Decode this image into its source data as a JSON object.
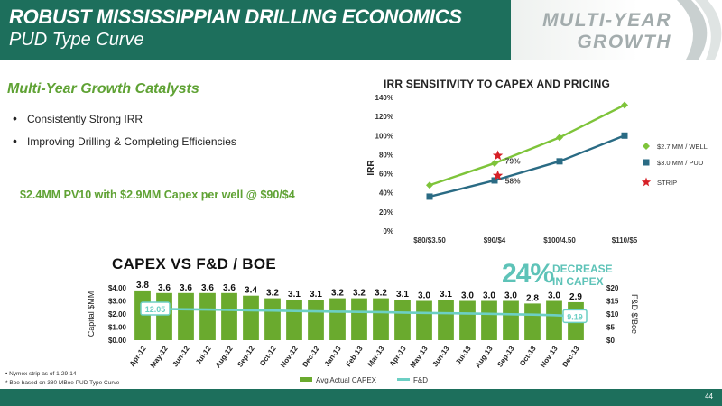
{
  "header": {
    "title": "ROBUST MISSISSIPPIAN DRILLING ECONOMICS",
    "subtitle": "PUD Type Curve",
    "brand_line1": "MULTI-YEAR",
    "brand_line2": "GROWTH"
  },
  "catalysts": {
    "title": "Multi-Year Growth Catalysts",
    "bullets": [
      "Consistently Strong IRR",
      "Improving Drilling & Completing Efficiencies"
    ],
    "pv10": "$2.4MM PV10 with $2.9MM Capex per well @ $90/$4"
  },
  "decrease": {
    "pct": "24%",
    "line1": "DECREASE",
    "line2": "IN CAPEX"
  },
  "footnotes": [
    "•   Nymex strip as of 1-29-14",
    "*   Boe based on 380 MBoe PUD Type Curve"
  ],
  "page_number": "44",
  "colors": {
    "header": "#1d6f5c",
    "accent_green": "#5fa234",
    "bar_green": "#6aaa2e",
    "fd_line": "#6ccfc4",
    "irr_light": "#7ec43a",
    "irr_dark": "#2a6b84",
    "strip_red": "#d62027"
  },
  "chart_data": [
    {
      "type": "line",
      "title": "IRR SENSITIVITY TO CAPEX AND PRICING",
      "xlabel": "",
      "ylabel": "IRR",
      "categories": [
        "$80/$3.50",
        "$90/$4",
        "$100/4.50",
        "$110/$5"
      ],
      "y_ticks": [
        "0%",
        "20%",
        "40%",
        "60%",
        "80%",
        "100%",
        "120%",
        "140%"
      ],
      "ylim": [
        0,
        140
      ],
      "series": [
        {
          "name": "$2.7 MM / WELL",
          "marker": "diamond",
          "values": [
            48,
            71,
            98,
            132
          ]
        },
        {
          "name": "$3.0 MM / PUD",
          "marker": "square",
          "values": [
            36,
            53,
            73,
            100
          ]
        }
      ],
      "annotations": [
        {
          "name": "STRIP",
          "marker": "star",
          "x": 1.05,
          "y": 79,
          "label": "79%"
        },
        {
          "name": "STRIP",
          "marker": "star",
          "x": 1.05,
          "y": 58,
          "label": "58%"
        }
      ],
      "legend": [
        "$2.7 MM / WELL",
        "$3.0 MM / PUD",
        "STRIP"
      ],
      "legend_position": "right"
    },
    {
      "type": "bar",
      "title": "CAPEX VS F&D / BOE",
      "title_mark": "*",
      "categories": [
        "Apr-12",
        "May-12",
        "Jun-12",
        "Jul-12",
        "Aug-12",
        "Sep-12",
        "Oct-12",
        "Nov-12",
        "Dec-12",
        "Jan-13",
        "Feb-13",
        "Mar-13",
        "Apr-13",
        "May-13",
        "Jun-13",
        "Jul-13",
        "Aug-13",
        "Sep-13",
        "Oct-13",
        "Nov-13",
        "Dec-13"
      ],
      "value_labels": [
        "3.8",
        "3.6",
        "3.6",
        "3.6",
        "3.6",
        "3.4",
        "3.2",
        "3.1",
        "3.1",
        "3.2",
        "3.2",
        "3.2",
        "3.1",
        "3.0",
        "3.1",
        "3.0",
        "3.0",
        "3.0",
        "2.8",
        "3.0",
        "2.9"
      ],
      "series": [
        {
          "name": "Avg Actual CAPEX",
          "axis": "left",
          "values": [
            3.8,
            3.6,
            3.6,
            3.6,
            3.6,
            3.4,
            3.2,
            3.1,
            3.1,
            3.2,
            3.2,
            3.2,
            3.1,
            3.0,
            3.1,
            3.0,
            3.0,
            3.0,
            2.8,
            3.0,
            2.9
          ]
        },
        {
          "name": "F&D",
          "axis": "right",
          "kind": "line",
          "values": [
            12.05,
            11.9,
            11.8,
            11.7,
            11.55,
            11.4,
            11.3,
            11.15,
            11.0,
            10.9,
            10.8,
            10.7,
            10.55,
            10.4,
            10.3,
            10.2,
            10.05,
            9.9,
            9.75,
            9.55,
            9.19
          ],
          "end_labels": [
            "12.05",
            "9.19"
          ]
        }
      ],
      "ylabel": "Capital $MM",
      "ylim": [
        0,
        4
      ],
      "y_ticks": [
        "$0.00",
        "$1.00",
        "$2.00",
        "$3.00",
        "$4.00"
      ],
      "y2label": "F&D $/Boe",
      "y2lim": [
        0,
        20
      ],
      "y2_ticks": [
        "$0",
        "$5",
        "$10",
        "$15",
        "$20"
      ],
      "legend": [
        "Avg Actual CAPEX",
        "F&D"
      ],
      "legend_position": "bottom"
    }
  ]
}
